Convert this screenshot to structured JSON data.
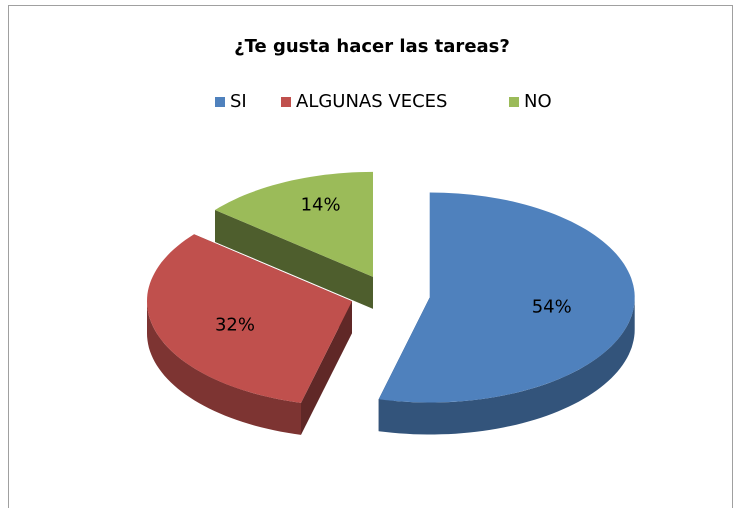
{
  "chart_data": {
    "type": "pie3d",
    "title": "¿Te gusta hacer las tareas?",
    "categories": [
      "SI",
      "ALGUNAS VECES",
      "NO"
    ],
    "values": [
      54,
      32,
      14
    ],
    "value_labels": [
      "54%",
      "32%",
      "14%"
    ],
    "colors": [
      "#4f81bd",
      "#c0504d",
      "#9bbb59"
    ],
    "legend": "top"
  }
}
